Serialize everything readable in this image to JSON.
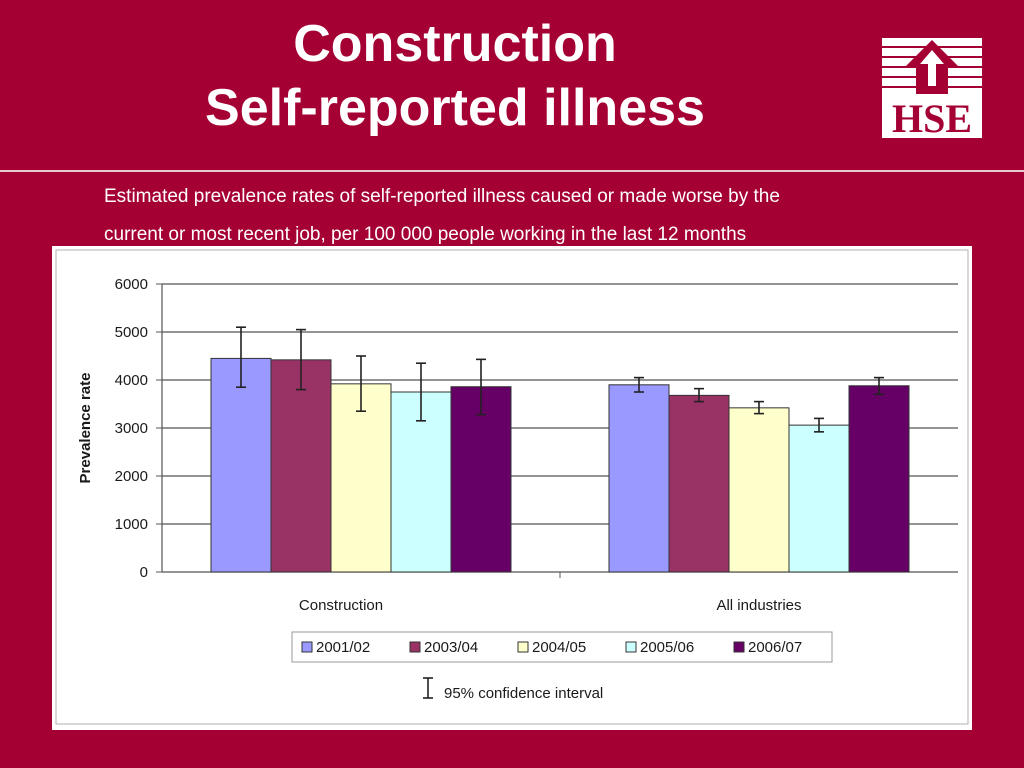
{
  "slide": {
    "title_line1": "Construction",
    "title_line2": "Self-reported illness",
    "subtitle_line1": "Estimated prevalence rates of self-reported illness caused or made worse by the",
    "subtitle_line2": "current or most recent job, per 100 000 people working in the last 12 months",
    "logo_text": "HSE"
  },
  "chart_data": {
    "type": "bar",
    "ylabel": "Prevalence rate",
    "ylim": [
      0,
      6000
    ],
    "yticks": [
      0,
      1000,
      2000,
      3000,
      4000,
      5000,
      6000
    ],
    "categories": [
      "Construction",
      "All industries"
    ],
    "grid": true,
    "legend_position": "bottom",
    "series": [
      {
        "name": "2001/02",
        "color": "#9999FF",
        "values": [
          4450,
          3900
        ],
        "ci_low": [
          3850,
          3750
        ],
        "ci_high": [
          5100,
          4050
        ]
      },
      {
        "name": "2003/04",
        "color": "#993366",
        "values": [
          4420,
          3680
        ],
        "ci_low": [
          3800,
          3550
        ],
        "ci_high": [
          5050,
          3820
        ]
      },
      {
        "name": "2004/05",
        "color": "#FFFFCC",
        "values": [
          3920,
          3420
        ],
        "ci_low": [
          3350,
          3300
        ],
        "ci_high": [
          4500,
          3550
        ]
      },
      {
        "name": "2005/06",
        "color": "#CCFFFF",
        "values": [
          3750,
          3060
        ],
        "ci_low": [
          3150,
          2920
        ],
        "ci_high": [
          4350,
          3200
        ]
      },
      {
        "name": "2006/07",
        "color": "#660066",
        "values": [
          3860,
          3880
        ],
        "ci_low": [
          3280,
          3700
        ],
        "ci_high": [
          4430,
          4050
        ]
      }
    ],
    "ci_legend": "95% confidence interval"
  }
}
